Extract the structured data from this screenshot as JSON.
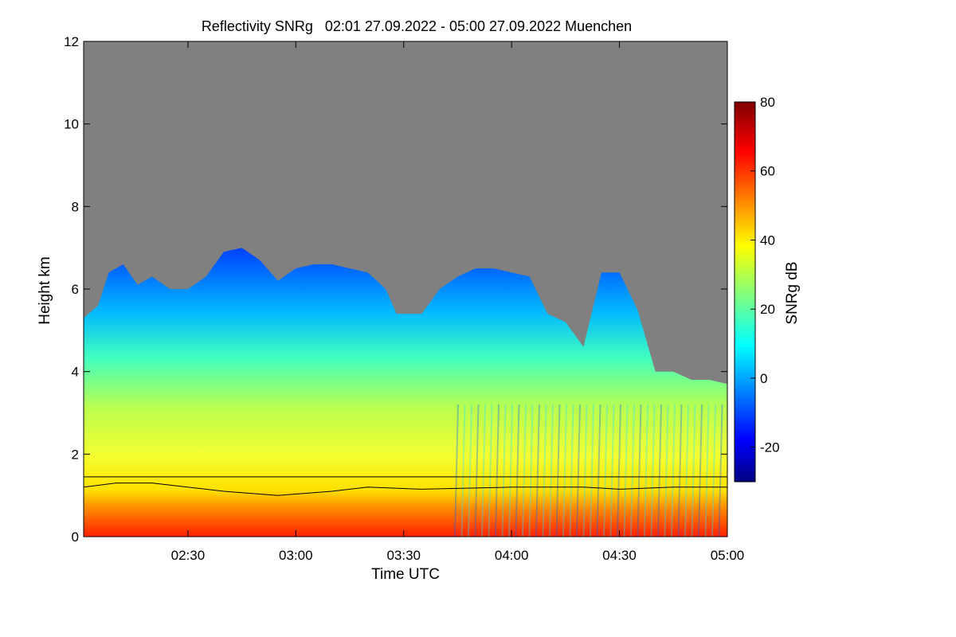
{
  "chart_data": {
    "type": "heatmap",
    "title": "Reflectivity SNRg   02:01 27.09.2022 - 05:00 27.09.2022 Muenchen",
    "xlabel": "Time UTC",
    "ylabel": "Height km",
    "colorbar_label": "SNRg dB",
    "x_ticks": [
      "02:30",
      "03:00",
      "03:30",
      "04:00",
      "04:30",
      "05:00"
    ],
    "y_ticks": [
      0,
      2,
      4,
      6,
      8,
      10,
      12
    ],
    "colorbar_ticks": [
      -20,
      0,
      20,
      40,
      60,
      80
    ],
    "xlim": [
      "02:01",
      "05:00"
    ],
    "ylim": [
      0,
      12
    ],
    "colorbar_range": [
      -30,
      80
    ],
    "colormap": "jet",
    "missing_color": "#808080",
    "cloud_top_km": [
      {
        "t": "02:01",
        "h": 5.3
      },
      {
        "t": "02:05",
        "h": 5.6
      },
      {
        "t": "02:08",
        "h": 6.4
      },
      {
        "t": "02:12",
        "h": 6.6
      },
      {
        "t": "02:16",
        "h": 6.1
      },
      {
        "t": "02:20",
        "h": 6.3
      },
      {
        "t": "02:25",
        "h": 6.0
      },
      {
        "t": "02:30",
        "h": 6.0
      },
      {
        "t": "02:35",
        "h": 6.3
      },
      {
        "t": "02:40",
        "h": 6.9
      },
      {
        "t": "02:45",
        "h": 7.0
      },
      {
        "t": "02:50",
        "h": 6.7
      },
      {
        "t": "02:55",
        "h": 6.2
      },
      {
        "t": "03:00",
        "h": 6.5
      },
      {
        "t": "03:05",
        "h": 6.6
      },
      {
        "t": "03:10",
        "h": 6.6
      },
      {
        "t": "03:15",
        "h": 6.5
      },
      {
        "t": "03:20",
        "h": 6.4
      },
      {
        "t": "03:25",
        "h": 6.0
      },
      {
        "t": "03:28",
        "h": 5.4
      },
      {
        "t": "03:35",
        "h": 5.4
      },
      {
        "t": "03:40",
        "h": 6.0
      },
      {
        "t": "03:45",
        "h": 6.3
      },
      {
        "t": "03:50",
        "h": 6.5
      },
      {
        "t": "03:55",
        "h": 6.5
      },
      {
        "t": "04:00",
        "h": 6.4
      },
      {
        "t": "04:05",
        "h": 6.3
      },
      {
        "t": "04:10",
        "h": 5.4
      },
      {
        "t": "04:15",
        "h": 5.2
      },
      {
        "t": "04:20",
        "h": 4.6
      },
      {
        "t": "04:25",
        "h": 6.4
      },
      {
        "t": "04:30",
        "h": 6.4
      },
      {
        "t": "04:35",
        "h": 5.5
      },
      {
        "t": "04:40",
        "h": 4.0
      },
      {
        "t": "04:45",
        "h": 4.0
      },
      {
        "t": "04:50",
        "h": 3.8
      },
      {
        "t": "04:55",
        "h": 3.8
      },
      {
        "t": "05:00",
        "h": 3.7
      }
    ],
    "reference_line_km": 1.45,
    "boundary_layer_km": [
      {
        "t": "02:01",
        "h": 1.2
      },
      {
        "t": "02:10",
        "h": 1.3
      },
      {
        "t": "02:20",
        "h": 1.3
      },
      {
        "t": "02:40",
        "h": 1.1
      },
      {
        "t": "02:55",
        "h": 1.0
      },
      {
        "t": "03:10",
        "h": 1.1
      },
      {
        "t": "03:20",
        "h": 1.2
      },
      {
        "t": "03:35",
        "h": 1.15
      },
      {
        "t": "04:00",
        "h": 1.2
      },
      {
        "t": "04:20",
        "h": 1.2
      },
      {
        "t": "04:30",
        "h": 1.15
      },
      {
        "t": "04:45",
        "h": 1.2
      },
      {
        "t": "05:00",
        "h": 1.2
      }
    ]
  }
}
